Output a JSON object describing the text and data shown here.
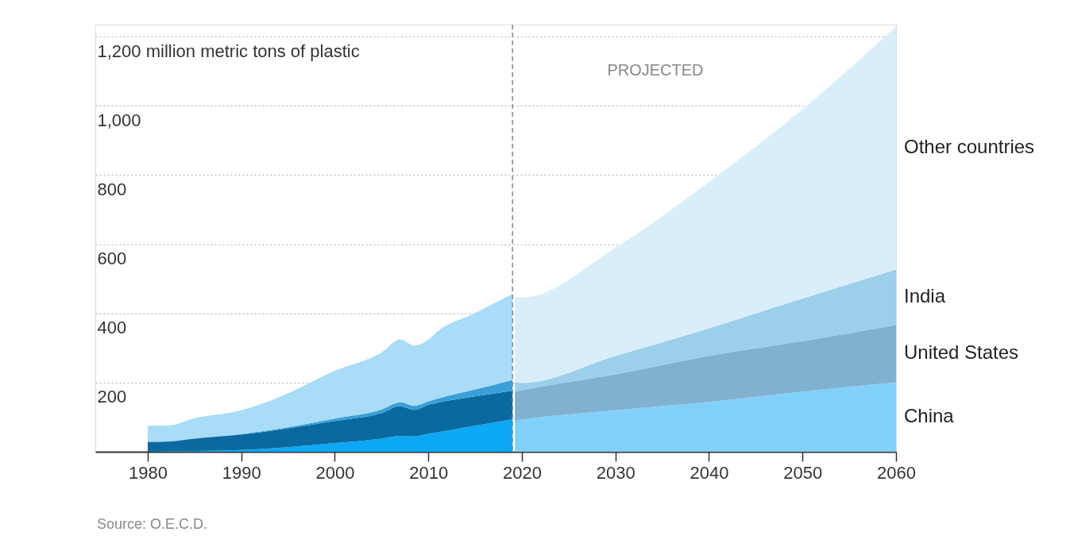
{
  "chart_data": {
    "type": "area",
    "stacked": true,
    "annotations": [
      "PROJECTED",
      "Source: O.E.C.D."
    ],
    "x": [
      1980,
      1982,
      1985,
      1990,
      1995,
      2000,
      2005,
      2007,
      2008.5,
      2010,
      2011,
      2015,
      2019,
      2019.25,
      2020,
      2030,
      2040,
      2050,
      2060
    ],
    "xlim": [
      1974.4,
      2060
    ],
    "xticks": [
      1980,
      1990,
      2000,
      2010,
      2020,
      2030,
      2040,
      2050,
      2060
    ],
    "ylim": [
      0,
      1235
    ],
    "yticks": [
      200,
      400,
      600,
      800,
      {
        "value": 1000,
        "label": "1,000"
      },
      {
        "value": 1200,
        "label": "1,200 million metric tons of plastic"
      }
    ],
    "grid": "y",
    "legend": false,
    "ref_lines": [
      {
        "axis": "x",
        "value": 2019,
        "color": "#888888",
        "line_style": "dashed"
      }
    ],
    "series": [
      {
        "color": "#0aa8f5",
        "values": [
          0,
          1,
          2,
          5,
          13,
          25,
          38,
          46,
          44,
          52,
          56,
          75,
          94,
          null,
          null,
          null,
          null,
          null,
          null
        ]
      },
      {
        "color": "#0a6aa0",
        "values": [
          28,
          28,
          36,
          45,
          55,
          64,
          74,
          86,
          77,
          84,
          86,
          85,
          83,
          null,
          null,
          null,
          null,
          null,
          null
        ]
      },
      {
        "color": "#3a9fd8",
        "values": [
          1,
          1,
          1,
          1,
          3,
          7,
          10,
          11,
          12,
          10,
          12,
          20,
          31,
          null,
          null,
          null,
          null,
          null,
          null
        ]
      },
      {
        "color": "#a8dcf7",
        "values": [
          46,
          45,
          58,
          69,
          98,
          138,
          165,
          182,
          174,
          178,
          194,
          221,
          248,
          null,
          null,
          null,
          null,
          null,
          null
        ]
      },
      {
        "name": "China",
        "color": "#80d0fa",
        "values": [
          null,
          null,
          null,
          null,
          null,
          null,
          null,
          null,
          null,
          null,
          null,
          null,
          null,
          90,
          93,
          120,
          144,
          174,
          201
        ]
      },
      {
        "name": "United States",
        "color": "#82b0cf",
        "values": [
          null,
          null,
          null,
          null,
          null,
          null,
          null,
          null,
          null,
          null,
          null,
          null,
          null,
          84,
          85,
          104,
          133,
          146,
          166
        ]
      },
      {
        "name": "India",
        "color": "#9ccfea",
        "values": [
          null,
          null,
          null,
          null,
          null,
          null,
          null,
          null,
          null,
          null,
          null,
          null,
          null,
          27,
          21,
          53,
          80,
          123,
          160
        ]
      },
      {
        "name": "Other countries",
        "color": "#d8effb",
        "values": [
          null,
          null,
          null,
          null,
          null,
          null,
          null,
          null,
          null,
          null,
          null,
          null,
          null,
          247,
          247,
          313,
          423,
          547,
          703
        ]
      }
    ]
  }
}
